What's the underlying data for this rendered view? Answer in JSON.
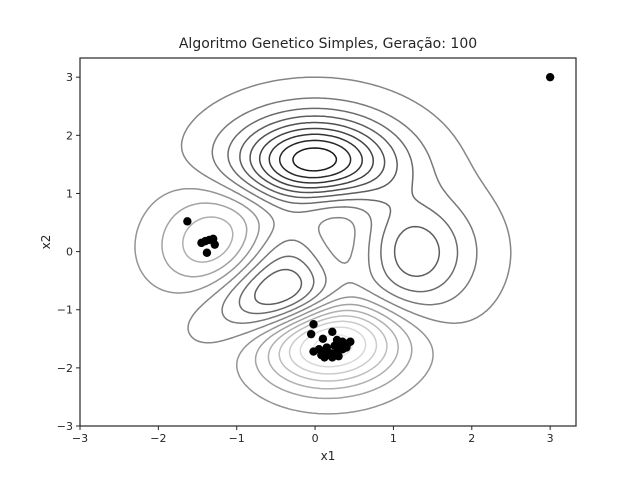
{
  "chart_data": {
    "type": "scatter",
    "title": "Algoritmo Genetico Simples, Geração: 100",
    "xlabel": "x1",
    "ylabel": "x2",
    "xlim": [
      -3,
      3.33
    ],
    "ylim": [
      -3,
      3.33
    ],
    "xticks": [
      "−3",
      "−2",
      "−1",
      "0",
      "1",
      "2",
      "3"
    ],
    "yticks": [
      "−3",
      "−2",
      "−1",
      "0",
      "1",
      "2",
      "3"
    ],
    "xtick_values": [
      -3,
      -2,
      -1,
      0,
      1,
      2,
      3
    ],
    "ytick_values": [
      -3,
      -2,
      -1,
      0,
      1,
      2,
      3
    ],
    "grid": false,
    "contour": {
      "description": "background contour lines of a multimodal objective function (peaks function)",
      "color_dark": "#1f1f1f",
      "color_light": "#e6e6e6"
    },
    "series": [
      {
        "color": "#000000",
        "points": [
          [
            3.0,
            3.0
          ],
          [
            -1.63,
            0.52
          ],
          [
            -1.45,
            0.15
          ],
          [
            -1.4,
            0.18
          ],
          [
            -1.35,
            0.2
          ],
          [
            -1.3,
            0.22
          ],
          [
            -1.28,
            0.12
          ],
          [
            -1.38,
            -0.02
          ],
          [
            -0.02,
            -1.25
          ],
          [
            -0.05,
            -1.42
          ],
          [
            0.22,
            -1.38
          ],
          [
            0.1,
            -1.5
          ],
          [
            0.28,
            -1.52
          ],
          [
            0.35,
            -1.55
          ],
          [
            0.42,
            -1.58
          ],
          [
            0.45,
            -1.55
          ],
          [
            0.3,
            -1.6
          ],
          [
            0.25,
            -1.62
          ],
          [
            0.15,
            -1.65
          ],
          [
            0.05,
            -1.68
          ],
          [
            -0.02,
            -1.72
          ],
          [
            0.12,
            -1.72
          ],
          [
            0.2,
            -1.75
          ],
          [
            0.28,
            -1.72
          ],
          [
            0.35,
            -1.68
          ],
          [
            0.4,
            -1.65
          ],
          [
            0.18,
            -1.78
          ],
          [
            0.08,
            -1.78
          ],
          [
            0.22,
            -1.82
          ],
          [
            0.3,
            -1.8
          ],
          [
            0.12,
            -1.82
          ]
        ]
      }
    ]
  }
}
